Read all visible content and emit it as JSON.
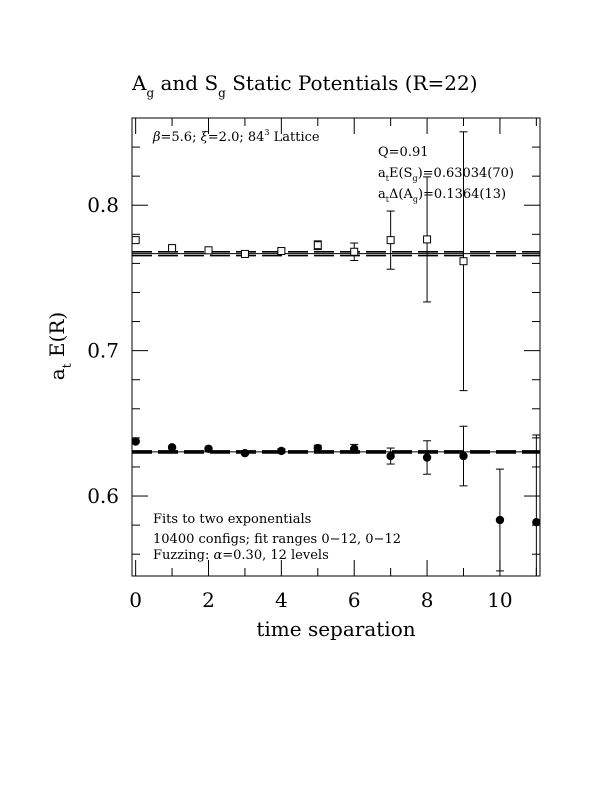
{
  "chart_data": {
    "type": "scatter",
    "title": {
      "pre": "A",
      "sub1": "g",
      "mid": " and S",
      "sub2": "g",
      "post": " Static Potentials (R=22)"
    },
    "xlabel": "time separation",
    "ylabel": {
      "pre": "a",
      "sub": "t",
      "post": " E(R)"
    },
    "xlim": [
      -0.1,
      11.1
    ],
    "ylim": [
      0.545,
      0.86
    ],
    "x_ticks": [
      0,
      2,
      4,
      6,
      8,
      10
    ],
    "x_tick_labels": [
      "0",
      "2",
      "4",
      "6",
      "8",
      "10"
    ],
    "y_ticks": [
      0.6,
      0.7,
      0.8
    ],
    "y_tick_labels": [
      "0.6",
      "0.7",
      "0.8"
    ],
    "grid": false,
    "annotations": {
      "lattice": {
        "beta": "β",
        "beta_val": "=5.6; ",
        "xi": "ξ",
        "xi_val": "=2.0; 84",
        "sup": "3",
        "post": " Lattice"
      },
      "q": "Q=0.91",
      "es": {
        "pre": "a",
        "sub1": "t",
        "mid": "E(S",
        "sub2": "g",
        "post": ")=0.63034(70)"
      },
      "da": {
        "pre": "a",
        "sub1": "t",
        "mid": "Δ(A",
        "sub2": "g",
        "post": ")=0.1364(13)"
      },
      "fits_line1": "Fits to two exponentials",
      "fits_line2": "10400 configs; fit ranges 0−12, 0−12",
      "fuzz": {
        "pre": "Fuzzing: ",
        "alpha": "α",
        "post": "=0.30, 12 levels"
      }
    },
    "series": [
      {
        "marker": "open-square",
        "x": [
          0,
          1,
          2,
          3,
          4,
          5,
          6,
          7,
          8,
          9
        ],
        "y": [
          0.776,
          0.7705,
          0.769,
          0.7665,
          0.7685,
          0.7725,
          0.768,
          0.776,
          0.7765,
          0.7615
        ],
        "err": [
          0.001,
          0.001,
          0.001,
          0.001,
          0.0015,
          0.003,
          0.006,
          0.02,
          0.043,
          0.089
        ]
      },
      {
        "marker": "filled-circle",
        "x": [
          0,
          1,
          2,
          3,
          4,
          5,
          6,
          7,
          8,
          9,
          10,
          11
        ],
        "y": [
          0.6375,
          0.6335,
          0.6325,
          0.6295,
          0.631,
          0.633,
          0.6325,
          0.6275,
          0.6265,
          0.6275,
          0.5835,
          0.582
        ],
        "err": [
          0.0008,
          0.001,
          0.001,
          0.001,
          0.0015,
          0.002,
          0.003,
          0.0055,
          0.0115,
          0.0205,
          0.035,
          0.06
        ]
      }
    ],
    "fit_lines": [
      {
        "value": 0.7667,
        "err": 0.0013
      },
      {
        "value": 0.63034,
        "err": 0.0007
      }
    ]
  }
}
